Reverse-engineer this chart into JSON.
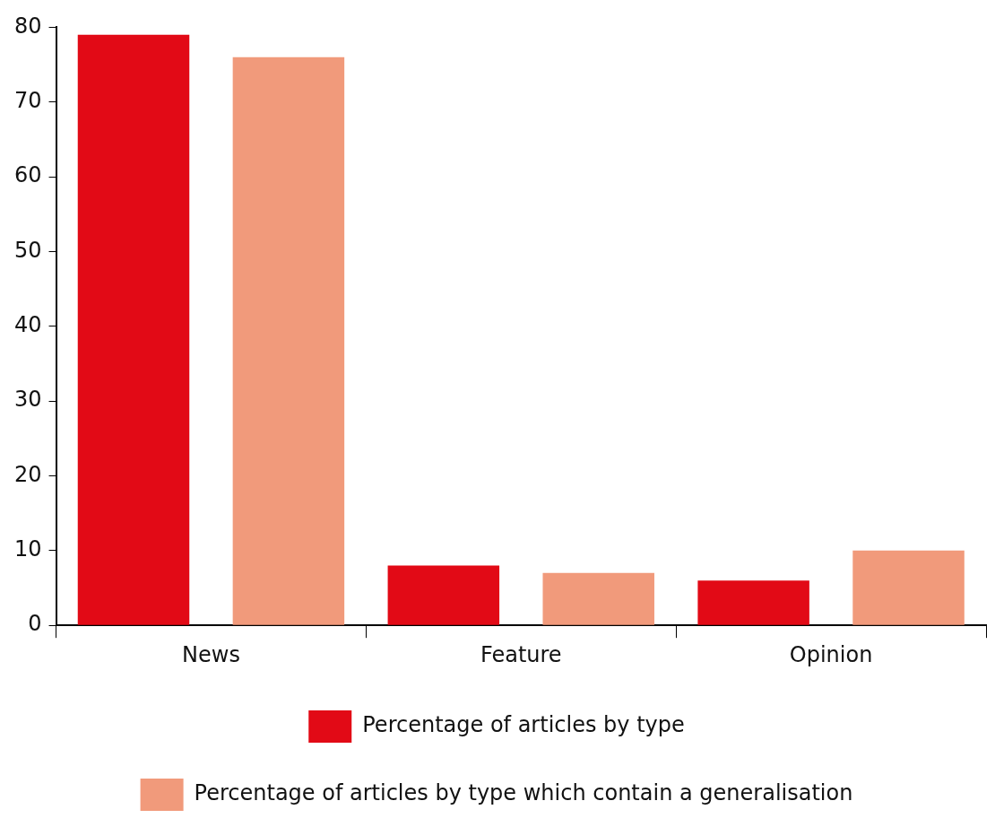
{
  "chart_data": {
    "type": "bar",
    "categories": [
      "News",
      "Feature",
      "Opinion"
    ],
    "series": [
      {
        "name": "Percentage of articles by type",
        "color": "#e20a16",
        "values": [
          79,
          8,
          6
        ]
      },
      {
        "name": "Percentage of articles by type which contain a generalisation",
        "color": "#f19a7b",
        "values": [
          76,
          7,
          10
        ]
      }
    ],
    "ylim": [
      0,
      80
    ],
    "yticks": [
      0,
      10,
      20,
      30,
      40,
      50,
      60,
      70,
      80
    ],
    "grid": false,
    "legend": "bottom"
  }
}
